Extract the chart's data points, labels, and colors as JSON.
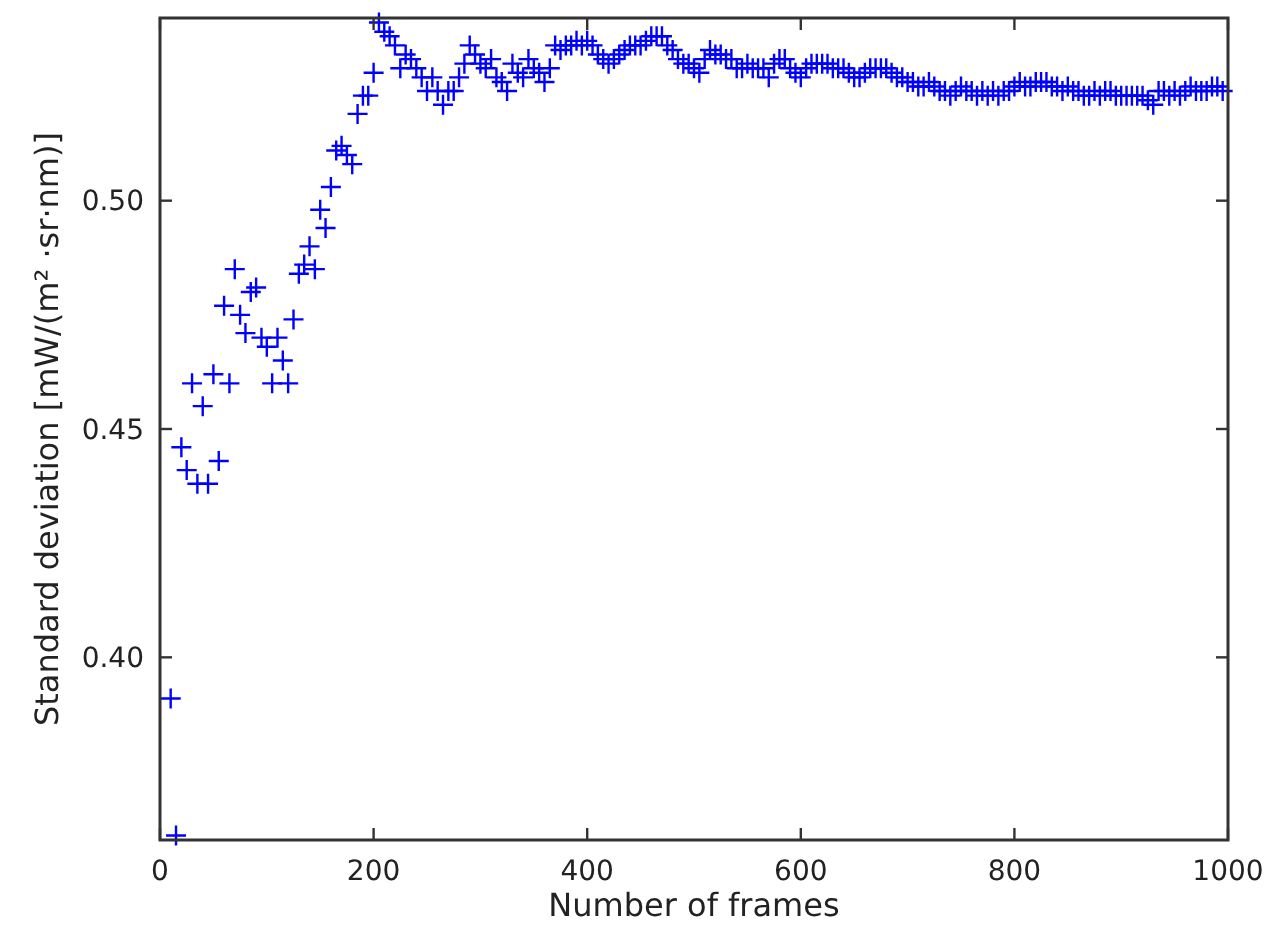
{
  "chart_data": {
    "type": "scatter",
    "xlabel": "Number of frames",
    "ylabel": "Standard deviation [mW/(m² ·sr·nm)]",
    "xlim": [
      0,
      1000
    ],
    "xticks": [
      0,
      200,
      400,
      600,
      800,
      1000
    ],
    "ylim": [
      0.36,
      0.54
    ],
    "yticks": [
      {
        "value": 0.4,
        "label": "0.40"
      },
      {
        "value": 0.45,
        "label": "0.45"
      },
      {
        "value": 0.5,
        "label": "0.50"
      }
    ],
    "grid": false,
    "marker": "cross",
    "series": [
      {
        "color": "#0000ff",
        "x": [
          10,
          15,
          20,
          25,
          30,
          35,
          40,
          45,
          50,
          55,
          60,
          65,
          70,
          75,
          80,
          85,
          90,
          95,
          100,
          105,
          110,
          115,
          120,
          125,
          130,
          135,
          140,
          145,
          150,
          155,
          160,
          165,
          170,
          175,
          180,
          185,
          190,
          195,
          200,
          205,
          210,
          215,
          220,
          225,
          230,
          235,
          240,
          245,
          250,
          255,
          260,
          265,
          270,
          275,
          280,
          285,
          290,
          295,
          300,
          305,
          310,
          315,
          320,
          325,
          330,
          335,
          340,
          345,
          350,
          355,
          360,
          365,
          370,
          375,
          380,
          385,
          390,
          395,
          400,
          405,
          410,
          415,
          420,
          425,
          430,
          435,
          440,
          445,
          450,
          455,
          460,
          465,
          470,
          475,
          480,
          485,
          490,
          495,
          500,
          505,
          510,
          515,
          520,
          525,
          530,
          535,
          540,
          545,
          550,
          555,
          560,
          565,
          570,
          575,
          580,
          585,
          590,
          595,
          600,
          605,
          610,
          615,
          620,
          625,
          630,
          635,
          640,
          645,
          650,
          655,
          660,
          665,
          670,
          675,
          680,
          685,
          690,
          695,
          700,
          705,
          710,
          715,
          720,
          725,
          730,
          735,
          740,
          745,
          750,
          755,
          760,
          765,
          770,
          775,
          780,
          785,
          790,
          795,
          800,
          805,
          810,
          815,
          820,
          825,
          830,
          835,
          840,
          845,
          850,
          855,
          860,
          865,
          870,
          875,
          880,
          885,
          890,
          895,
          900,
          905,
          910,
          915,
          920,
          925,
          930,
          935,
          940,
          945,
          950,
          955,
          960,
          965,
          970,
          975,
          980,
          985,
          990,
          995
        ],
        "values": [
          0.391,
          0.361,
          0.446,
          0.441,
          0.46,
          0.438,
          0.455,
          0.438,
          0.462,
          0.443,
          0.477,
          0.46,
          0.485,
          0.475,
          0.471,
          0.48,
          0.481,
          0.47,
          0.468,
          0.46,
          0.47,
          0.465,
          0.46,
          0.474,
          0.484,
          0.486,
          0.49,
          0.485,
          0.498,
          0.494,
          0.503,
          0.511,
          0.512,
          0.51,
          0.508,
          0.519,
          0.523,
          0.523,
          0.528,
          0.539,
          0.537,
          0.536,
          0.534,
          0.529,
          0.532,
          0.531,
          0.529,
          0.527,
          0.524,
          0.527,
          0.524,
          0.521,
          0.524,
          0.524,
          0.527,
          0.53,
          0.534,
          0.532,
          0.53,
          0.529,
          0.531,
          0.527,
          0.526,
          0.524,
          0.53,
          0.528,
          0.527,
          0.531,
          0.529,
          0.528,
          0.526,
          0.529,
          0.534,
          0.533,
          0.534,
          0.534,
          0.535,
          0.534,
          0.535,
          0.534,
          0.532,
          0.531,
          0.53,
          0.531,
          0.532,
          0.533,
          0.534,
          0.534,
          0.534,
          0.535,
          0.536,
          0.536,
          0.536,
          0.534,
          0.533,
          0.531,
          0.53,
          0.53,
          0.529,
          0.528,
          0.531,
          0.533,
          0.532,
          0.532,
          0.531,
          0.531,
          0.529,
          0.529,
          0.53,
          0.529,
          0.529,
          0.529,
          0.527,
          0.53,
          0.531,
          0.531,
          0.529,
          0.528,
          0.527,
          0.529,
          0.53,
          0.53,
          0.53,
          0.53,
          0.529,
          0.529,
          0.529,
          0.528,
          0.527,
          0.527,
          0.528,
          0.529,
          0.529,
          0.529,
          0.529,
          0.528,
          0.527,
          0.527,
          0.526,
          0.526,
          0.525,
          0.525,
          0.526,
          0.525,
          0.524,
          0.524,
          0.523,
          0.524,
          0.525,
          0.524,
          0.524,
          0.523,
          0.524,
          0.523,
          0.524,
          0.523,
          0.524,
          0.524,
          0.525,
          0.526,
          0.525,
          0.525,
          0.526,
          0.526,
          0.526,
          0.525,
          0.525,
          0.524,
          0.525,
          0.524,
          0.524,
          0.523,
          0.523,
          0.524,
          0.523,
          0.524,
          0.524,
          0.523,
          0.523,
          0.523,
          0.523,
          0.523,
          0.523,
          0.522,
          0.521,
          0.524,
          0.524,
          0.523,
          0.524,
          0.523,
          0.524,
          0.525,
          0.524,
          0.524,
          0.524,
          0.525,
          0.525,
          0.524
        ]
      }
    ]
  }
}
